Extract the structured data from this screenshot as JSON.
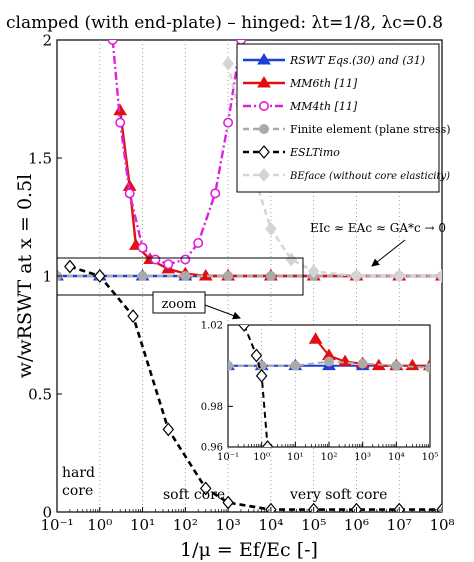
{
  "chart_data": {
    "type": "line",
    "title": "clamped (with end-plate) – hinged: λt=1/8, λc=0.8",
    "xlabel": "1/μ = Ef/Ec [-]",
    "ylabel": "w/wRSWT  at  x = 0.5l",
    "xscale": "log",
    "xlim": [
      0.1,
      100000000
    ],
    "ylim": [
      0,
      2
    ],
    "x_ticks": [
      0.1,
      1,
      10,
      100,
      1000,
      10000,
      100000,
      1000000,
      10000000,
      100000000
    ],
    "x_tick_labels": [
      "10⁻¹",
      "10⁰",
      "10¹",
      "10²",
      "10³",
      "10⁴",
      "10⁵",
      "10⁶",
      "10⁷",
      "10⁸"
    ],
    "y_ticks": [
      0,
      0.5,
      1,
      1.5,
      2
    ],
    "y_tick_labels": [
      "0",
      "0.5",
      "1",
      "1.5",
      "2"
    ],
    "grid": "dotted vertical lines at decades",
    "legend_placement": "top-right",
    "series": [
      {
        "name": "RSWT Eqs.(30) and (31)",
        "color": "#1f3fd6",
        "style": "solid",
        "marker": "triangle-up",
        "x": [
          0.1,
          1,
          10,
          100,
          1000,
          10000,
          100000,
          1000000,
          10000000,
          100000000
        ],
        "y": [
          1,
          1,
          1,
          1,
          1,
          1,
          1,
          1,
          1,
          1
        ]
      },
      {
        "name": "MM6th [11]",
        "color": "#e01010",
        "style": "solid",
        "marker": "triangle-up",
        "x": [
          3,
          5,
          7,
          15,
          40,
          100,
          300,
          1000,
          10000,
          100000,
          1000000,
          10000000,
          100000000
        ],
        "y": [
          1.7,
          1.38,
          1.13,
          1.07,
          1.03,
          1.01,
          1.0,
          1.0,
          1.0,
          1.0,
          1.0,
          1.0,
          1.0
        ]
      },
      {
        "name": "MM4th [11]",
        "color": "#e020e0",
        "style": "dash-dot",
        "marker": "circle",
        "x": [
          2,
          3,
          5,
          10,
          20,
          40,
          100,
          200,
          500,
          1000,
          2000
        ],
        "y": [
          2.0,
          1.65,
          1.35,
          1.12,
          1.07,
          1.05,
          1.07,
          1.14,
          1.35,
          1.65,
          2.0
        ]
      },
      {
        "name": "Finite element (plane stress)",
        "color": "#aaaaaa",
        "style": "dashed",
        "marker": "circle",
        "x": [
          0.1,
          1,
          10,
          100,
          1000,
          10000,
          100000,
          1000000,
          10000000,
          100000000
        ],
        "y": [
          1,
          1,
          1,
          1,
          1,
          1,
          1,
          1,
          1,
          1
        ]
      },
      {
        "name": "ESLTimo",
        "color": "#000000",
        "style": "dashed",
        "marker": "diamond",
        "x": [
          0.2,
          1,
          6,
          40,
          300,
          1000,
          10000,
          100000,
          1000000,
          10000000,
          100000000
        ],
        "y": [
          1.04,
          1.0,
          0.83,
          0.35,
          0.1,
          0.04,
          0.01,
          0.01,
          0.01,
          0.01,
          0.01
        ]
      },
      {
        "name": "BEface (without core elasticity)",
        "color": "#d4d4d4",
        "style": "dashed",
        "marker": "diamond",
        "x": [
          1000,
          3000,
          10000,
          30000,
          100000,
          1000000,
          10000000,
          100000000
        ],
        "y": [
          1.9,
          1.5,
          1.2,
          1.07,
          1.02,
          1.0,
          1.0,
          1.0
        ]
      }
    ],
    "inset": {
      "xscale": "log",
      "xlim": [
        0.1,
        100000
      ],
      "ylim": [
        0.96,
        1.02
      ],
      "x_tick_labels": [
        "10⁻¹",
        "10⁰",
        "10¹",
        "10²",
        "10³",
        "10⁴",
        "10⁵"
      ],
      "y_tick_labels": [
        "0.96",
        "0.98",
        "1.02"
      ],
      "series": [
        {
          "name": "RSWT",
          "x": [
            0.1,
            1,
            10,
            100,
            1000,
            10000,
            100000
          ],
          "y": [
            1,
            1,
            1,
            1,
            1,
            1,
            1
          ]
        },
        {
          "name": "MM6th",
          "x": [
            40,
            100,
            300,
            1000,
            3000,
            10000,
            30000,
            100000
          ],
          "y": [
            1.013,
            1.005,
            1.002,
            1.001,
            1.0,
            1.0,
            1.0,
            1.0
          ]
        },
        {
          "name": "Finite element",
          "x": [
            0.1,
            1,
            10,
            100,
            1000,
            10000,
            100000
          ],
          "y": [
            1,
            1.0,
            1.0,
            1.002,
            1.001,
            1.0,
            0.999
          ]
        },
        {
          "name": "ESLTimo",
          "x": [
            0.3,
            0.7,
            1,
            1.5
          ],
          "y": [
            1.02,
            1.005,
            0.995,
            0.96
          ]
        }
      ]
    },
    "annotations": {
      "asymptote": "EIc ≈ EAc ≈ GA*c → 0",
      "zoom": "zoom",
      "hard_core_1": "hard",
      "hard_core_2": "core",
      "soft_core": "soft core",
      "very_soft_core": "very soft core"
    }
  }
}
